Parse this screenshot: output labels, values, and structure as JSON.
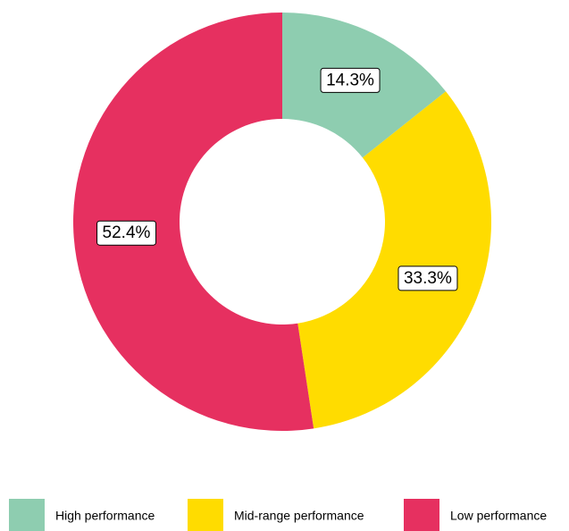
{
  "chart_data": {
    "type": "donut",
    "categories": [
      "High performance",
      "Mid-range performance",
      "Low performance"
    ],
    "values": [
      14.3,
      33.3,
      52.4
    ],
    "value_labels": [
      "14.3%",
      "33.3%",
      "52.4%"
    ],
    "colors": [
      "#8ecdb0",
      "#ffdc00",
      "#e63060"
    ],
    "legend": "bottom"
  }
}
